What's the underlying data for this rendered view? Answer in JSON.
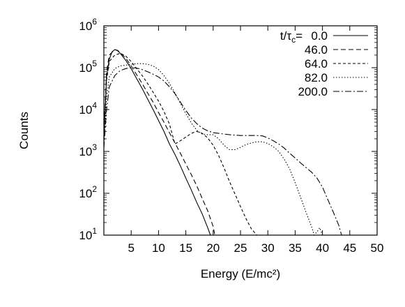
{
  "chart_data": {
    "type": "line",
    "xlabel": "Energy (E/mc²)",
    "ylabel": "Counts",
    "xlim": [
      0,
      50
    ],
    "ylim": [
      10,
      1000000
    ],
    "yscale": "log",
    "grid": false,
    "legend_position": "top-right",
    "legend_header": "t/τc=",
    "x_ticks": [
      5,
      10,
      15,
      20,
      25,
      30,
      35,
      40,
      45,
      50
    ],
    "x_tick_labels": [
      "5",
      "10",
      "15",
      "20",
      "25",
      "30",
      "35",
      "40",
      "45",
      "50"
    ],
    "y_ticks": [
      10,
      100,
      1000,
      10000,
      100000,
      1000000
    ],
    "series": [
      {
        "name": "0.0",
        "dash": "none",
        "points": [
          [
            0,
            2000
          ],
          [
            0.5,
            60000
          ],
          [
            1,
            160000
          ],
          [
            1.5,
            240000
          ],
          [
            2,
            270000
          ],
          [
            2.5,
            255000
          ],
          [
            3,
            220000
          ],
          [
            4,
            150000
          ],
          [
            5,
            95000
          ],
          [
            6,
            55000
          ],
          [
            7,
            32000
          ],
          [
            8,
            18000
          ],
          [
            9,
            10000
          ],
          [
            10,
            5500
          ],
          [
            11,
            3000
          ],
          [
            12,
            1500
          ],
          [
            13,
            850
          ],
          [
            14,
            450
          ],
          [
            15,
            230
          ],
          [
            16,
            120
          ],
          [
            17,
            60
          ],
          [
            18,
            32
          ],
          [
            19,
            15
          ],
          [
            19.5,
            10
          ]
        ]
      },
      {
        "name": "46.0",
        "dash": "7,4",
        "points": [
          [
            0,
            3000
          ],
          [
            0.5,
            80000
          ],
          [
            1,
            200000
          ],
          [
            2,
            270000
          ],
          [
            2.5,
            260000
          ],
          [
            3,
            230000
          ],
          [
            4,
            170000
          ],
          [
            5,
            110000
          ],
          [
            6,
            68000
          ],
          [
            7,
            42000
          ],
          [
            8,
            25000
          ],
          [
            9,
            15000
          ],
          [
            10,
            8500
          ],
          [
            11,
            5000
          ],
          [
            12,
            2800
          ],
          [
            13,
            1600
          ],
          [
            14,
            900
          ],
          [
            15,
            500
          ],
          [
            16,
            280
          ],
          [
            17,
            150
          ],
          [
            18,
            75
          ],
          [
            19,
            38
          ],
          [
            20,
            16
          ],
          [
            20.3,
            10
          ]
        ]
      },
      {
        "name": "64.0",
        "dash": "4,3",
        "points": [
          [
            0,
            2000
          ],
          [
            0.5,
            50000
          ],
          [
            1,
            140000
          ],
          [
            2,
            200000
          ],
          [
            3,
            220000
          ],
          [
            4,
            190000
          ],
          [
            5,
            140000
          ],
          [
            6,
            95000
          ],
          [
            7,
            65000
          ],
          [
            8,
            42000
          ],
          [
            9,
            26000
          ],
          [
            10,
            16000
          ],
          [
            11,
            9000
          ],
          [
            12,
            4500
          ],
          [
            12.5,
            2600
          ],
          [
            13,
            1500
          ],
          [
            14,
            1800
          ],
          [
            15,
            2200
          ],
          [
            16,
            2700
          ],
          [
            17,
            3000
          ],
          [
            18,
            2700
          ],
          [
            19,
            2100
          ],
          [
            20,
            1400
          ],
          [
            21,
            800
          ],
          [
            22,
            400
          ],
          [
            23,
            190
          ],
          [
            24,
            95
          ],
          [
            25,
            48
          ],
          [
            26,
            25
          ],
          [
            27,
            14
          ],
          [
            28,
            10
          ]
        ]
      },
      {
        "name": "82.0",
        "dash": "1.5,2.5",
        "points": [
          [
            0,
            1500
          ],
          [
            0.5,
            20000
          ],
          [
            1,
            60000
          ],
          [
            2,
            95000
          ],
          [
            3,
            110000
          ],
          [
            4,
            115000
          ],
          [
            5,
            120000
          ],
          [
            6,
            125000
          ],
          [
            7,
            125000
          ],
          [
            8,
            120000
          ],
          [
            9,
            110000
          ],
          [
            10,
            90000
          ],
          [
            11,
            65000
          ],
          [
            12,
            42000
          ],
          [
            13,
            25000
          ],
          [
            14,
            14000
          ],
          [
            15,
            8000
          ],
          [
            16,
            4800
          ],
          [
            17,
            3200
          ],
          [
            18,
            2600
          ],
          [
            19,
            2500
          ],
          [
            20,
            2500
          ],
          [
            21,
            2000
          ],
          [
            22,
            1400
          ],
          [
            23,
            1100
          ],
          [
            24,
            1100
          ],
          [
            25,
            1250
          ],
          [
            26,
            1450
          ],
          [
            27,
            1600
          ],
          [
            28,
            1700
          ],
          [
            29,
            1700
          ],
          [
            30,
            1550
          ],
          [
            31,
            1300
          ],
          [
            32,
            1000
          ],
          [
            33,
            650
          ],
          [
            34,
            380
          ],
          [
            35,
            180
          ],
          [
            36,
            80
          ],
          [
            37,
            35
          ],
          [
            38,
            16
          ],
          [
            38.5,
            10
          ],
          [
            39,
            12
          ],
          [
            39.5,
            15
          ],
          [
            40,
            10
          ]
        ]
      },
      {
        "name": "200.0",
        "dash": "9,3,2,3",
        "points": [
          [
            0,
            1200
          ],
          [
            0.5,
            10000
          ],
          [
            1,
            35000
          ],
          [
            2,
            65000
          ],
          [
            3,
            85000
          ],
          [
            4,
            95000
          ],
          [
            5,
            100000
          ],
          [
            6,
            98000
          ],
          [
            7,
            90000
          ],
          [
            8,
            80000
          ],
          [
            9,
            70000
          ],
          [
            10,
            60000
          ],
          [
            11,
            48000
          ],
          [
            12,
            35000
          ],
          [
            13,
            24000
          ],
          [
            14,
            15000
          ],
          [
            15,
            9500
          ],
          [
            16,
            6300
          ],
          [
            17,
            4600
          ],
          [
            18,
            3600
          ],
          [
            19,
            3100
          ],
          [
            20,
            2800
          ],
          [
            21,
            2700
          ],
          [
            22,
            2600
          ],
          [
            23,
            2500
          ],
          [
            24,
            2450
          ],
          [
            25,
            2400
          ],
          [
            26,
            2400
          ],
          [
            27,
            2400
          ],
          [
            28,
            2400
          ],
          [
            29,
            2350
          ],
          [
            30,
            2100
          ],
          [
            31,
            1800
          ],
          [
            32,
            1500
          ],
          [
            33,
            1200
          ],
          [
            34,
            900
          ],
          [
            35,
            700
          ],
          [
            36,
            530
          ],
          [
            37,
            410
          ],
          [
            38,
            320
          ],
          [
            39,
            230
          ],
          [
            40,
            140
          ],
          [
            41,
            70
          ],
          [
            42,
            35
          ],
          [
            43,
            17
          ],
          [
            43.5,
            10
          ]
        ]
      }
    ]
  }
}
